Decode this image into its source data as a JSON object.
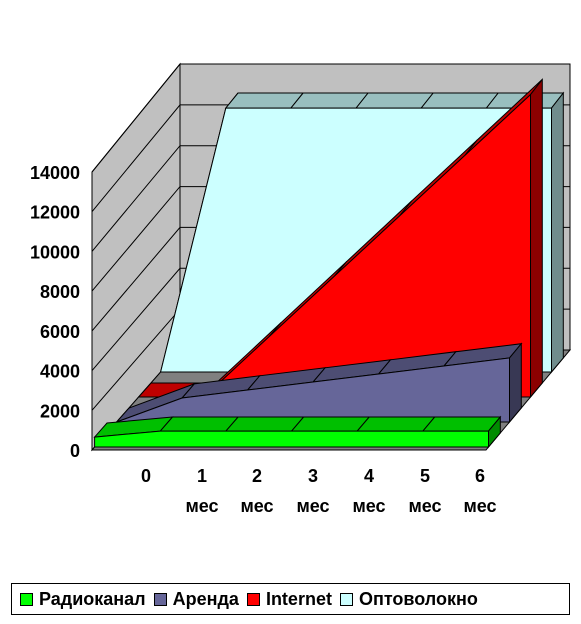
{
  "chart_data": {
    "type": "area",
    "subtype": "3d-area",
    "categories": [
      {
        "num": "0",
        "unit": ""
      },
      {
        "num": "1",
        "unit": "мес"
      },
      {
        "num": "2",
        "unit": "мес"
      },
      {
        "num": "3",
        "unit": "мес"
      },
      {
        "num": "4",
        "unit": "мес"
      },
      {
        "num": "5",
        "unit": "мес"
      },
      {
        "num": "6",
        "unit": "мес"
      }
    ],
    "series": [
      {
        "name": "Радиоканал",
        "color": "#00ff00",
        "values": [
          500,
          800,
          800,
          800,
          800,
          800,
          800
        ]
      },
      {
        "name": "Аренда",
        "color": "#666699",
        "values": [
          0,
          1200,
          1600,
          2000,
          2400,
          2800,
          3200
        ]
      },
      {
        "name": "Internet",
        "color": "#ff0000",
        "values": [
          0,
          0,
          3000,
          6000,
          9000,
          12000,
          15000
        ]
      },
      {
        "name": "Оптоволокно",
        "color": "#ccffff",
        "values": [
          0,
          13000,
          13000,
          13000,
          13000,
          13000,
          13000
        ]
      }
    ],
    "y_ticks": [
      "0",
      "2000",
      "4000",
      "6000",
      "8000",
      "10000",
      "12000",
      "14000"
    ],
    "ylim": [
      0,
      14000
    ],
    "grid": true,
    "legend_position": "bottom",
    "wall_color": "#c0c0c0",
    "floor_color": "#808080"
  }
}
